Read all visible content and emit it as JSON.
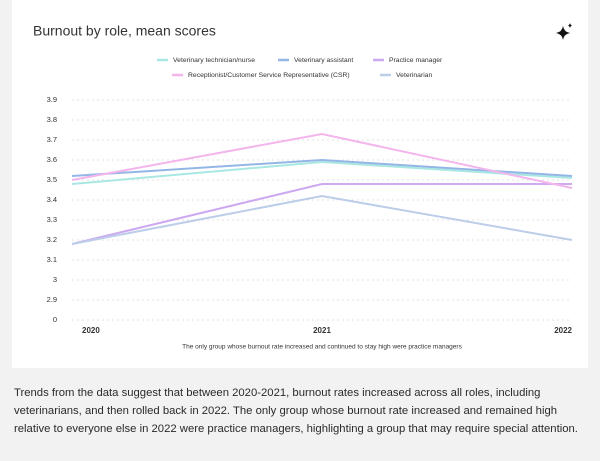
{
  "chart_data": {
    "type": "line",
    "title": "Burnout by role, mean scores",
    "caption": "The only group whose burnout rate increased and continued to stay high were practice managers",
    "categories": [
      "2020",
      "2021",
      "2022"
    ],
    "series": [
      {
        "name": "Veterinary technician/nurse",
        "color": "#a9e8e2",
        "values": [
          3.48,
          3.59,
          3.51
        ]
      },
      {
        "name": "Veterinary assistant",
        "color": "#93b6e6",
        "values": [
          3.52,
          3.6,
          3.52
        ]
      },
      {
        "name": "Practice manager",
        "color": "#cda9f2",
        "values": [
          3.18,
          3.48,
          3.48
        ]
      },
      {
        "name": "Receptionist/Customer Service Representative (CSR)",
        "color": "#f3b5ec",
        "values": [
          3.5,
          3.73,
          3.46
        ]
      },
      {
        "name": "Veterinarian",
        "color": "#bccde9",
        "values": [
          3.18,
          3.42,
          3.2
        ]
      }
    ],
    "ylim": [
      2.8,
      3.9
    ],
    "yticks": [
      0,
      2.9,
      3.0,
      3.1,
      3.2,
      3.3,
      3.4,
      3.5,
      3.6,
      3.7,
      3.8,
      3.9
    ],
    "axis_break": true,
    "grid": true
  },
  "body": {
    "paragraph": "Trends from the data suggest that between 2020-2021, burnout rates increased across all roles, including veterinarians, and then rolled back in 2022. The only group whose burnout rate increased and remained high relative to everyone else in 2022 were practice managers, highlighting a group that may require special attention."
  }
}
